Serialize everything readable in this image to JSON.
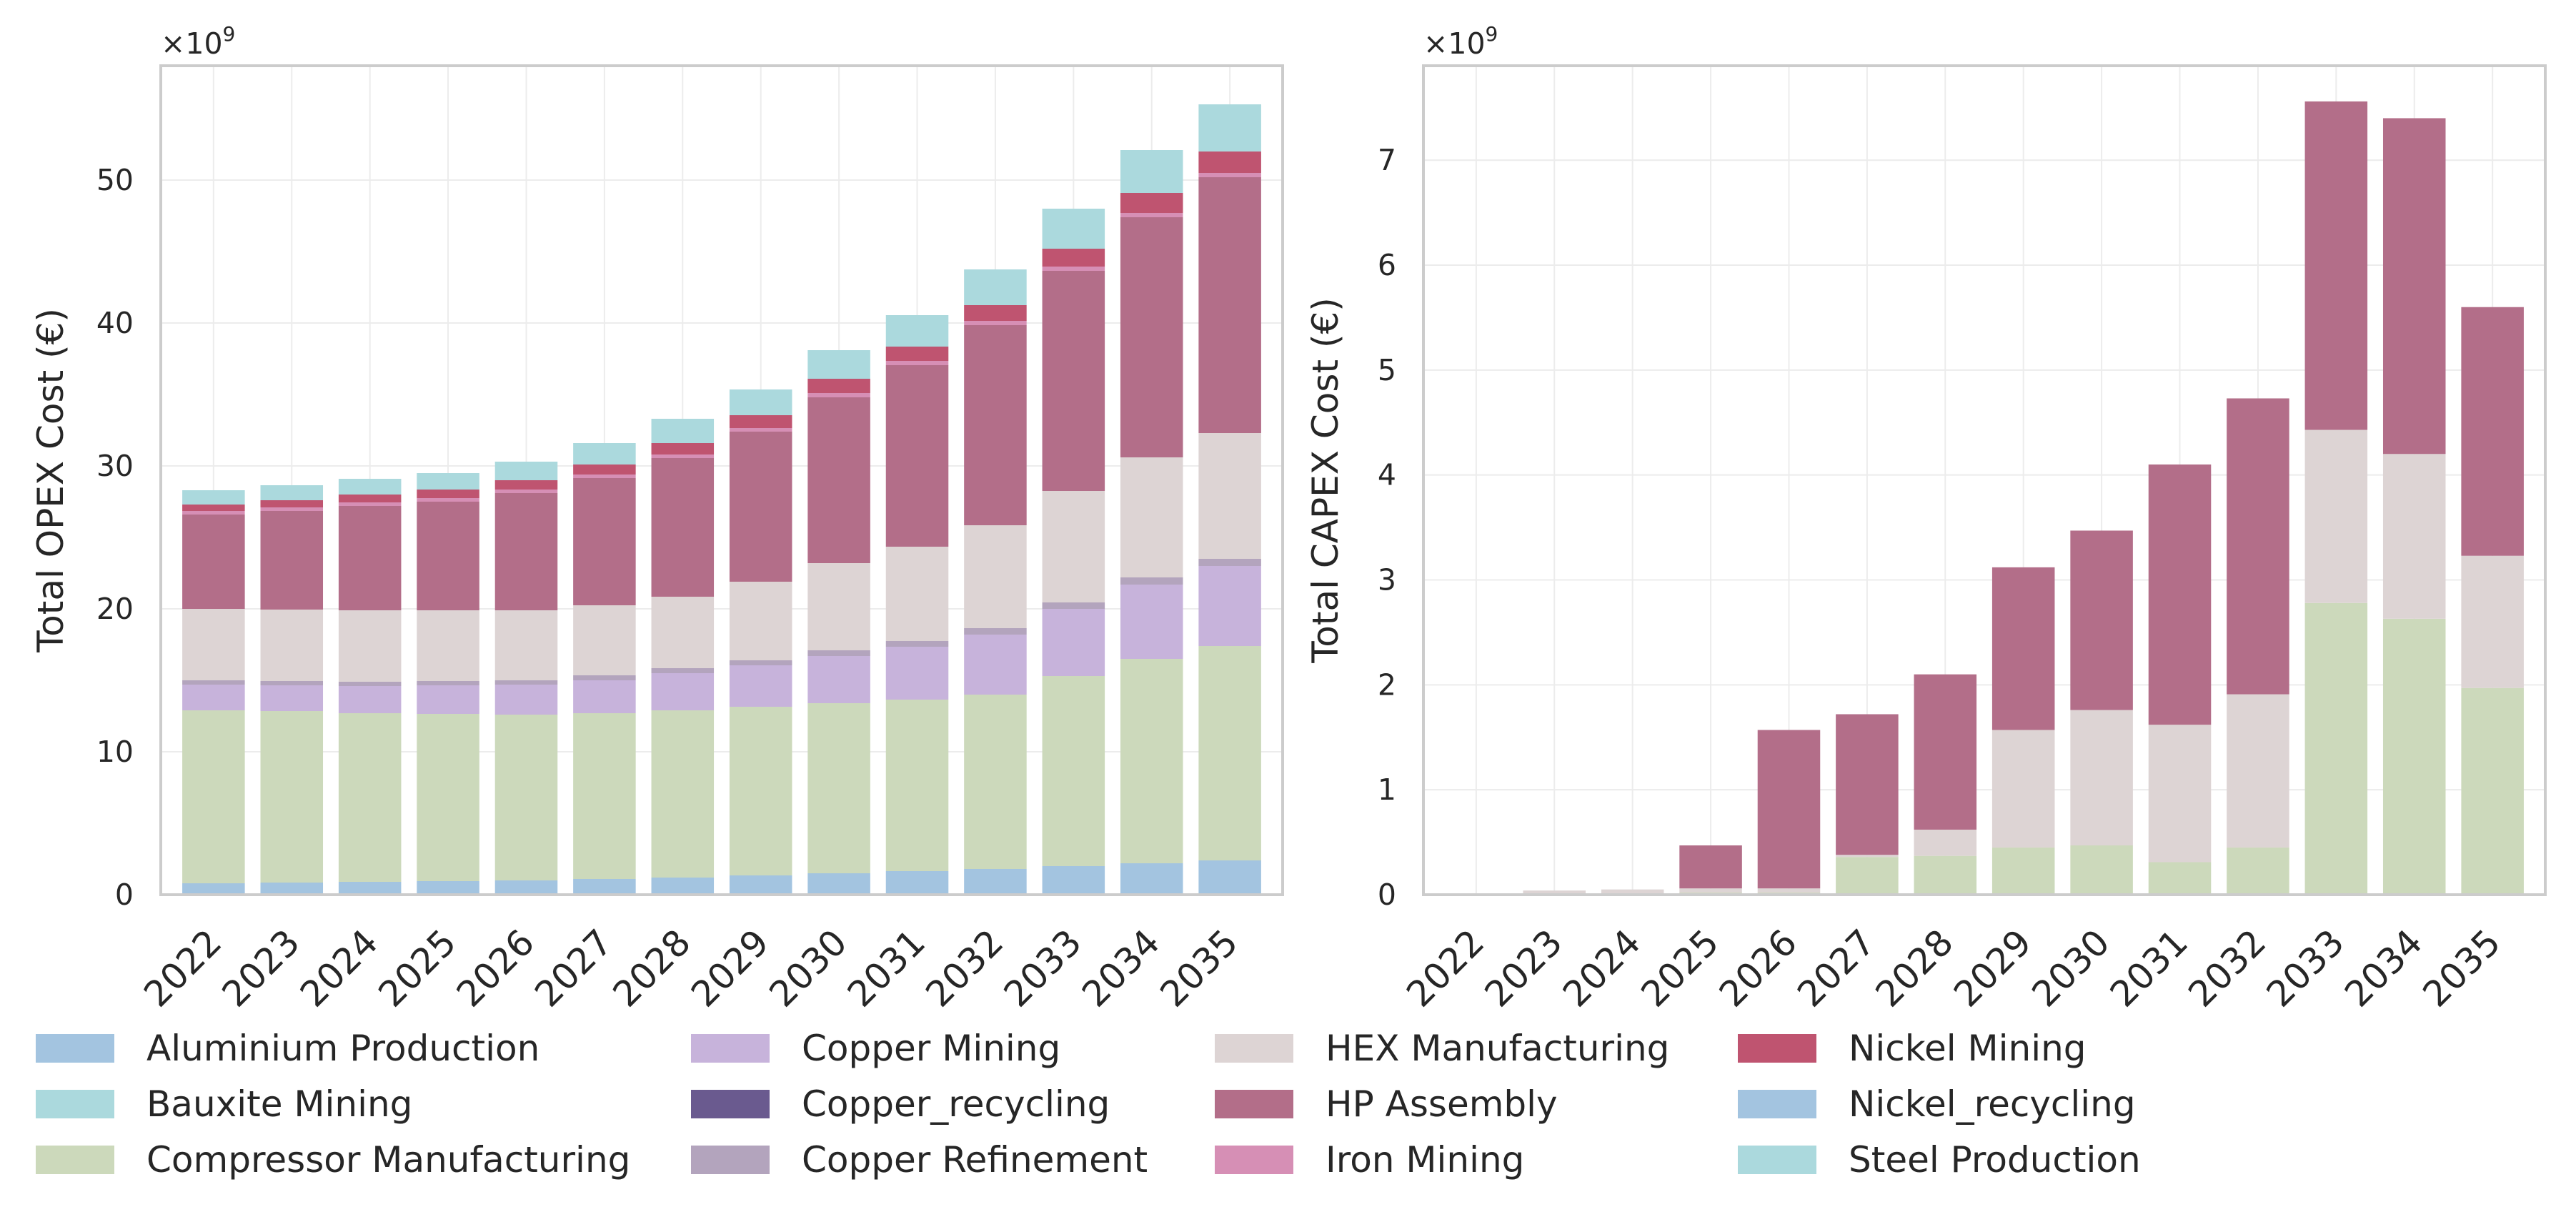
{
  "chart_data": [
    {
      "type": "bar",
      "stacked": true,
      "title": "",
      "xlabel": "",
      "ylabel": "Total OPEX Cost (€)",
      "offset_text": "×10",
      "offset_exp": "9",
      "ylim": [
        0,
        58
      ],
      "yticks": [
        0,
        10,
        20,
        30,
        40,
        50
      ],
      "grid": true,
      "categories": [
        "2022",
        "2023",
        "2024",
        "2025",
        "2026",
        "2027",
        "2028",
        "2029",
        "2030",
        "2031",
        "2032",
        "2033",
        "2034",
        "2035"
      ],
      "series": [
        {
          "name": "Aluminium Production",
          "values": [
            0.8,
            0.85,
            0.9,
            0.95,
            1.0,
            1.1,
            1.2,
            1.35,
            1.5,
            1.65,
            1.8,
            2.0,
            2.2,
            2.4
          ]
        },
        {
          "name": "Compressor Manufacturing",
          "values": [
            12.1,
            12.0,
            11.8,
            11.7,
            11.6,
            11.6,
            11.7,
            11.8,
            11.9,
            12.0,
            12.2,
            13.3,
            14.3,
            15.0
          ]
        },
        {
          "name": "Copper Mining",
          "values": [
            1.8,
            1.8,
            1.9,
            2.0,
            2.1,
            2.3,
            2.6,
            2.9,
            3.3,
            3.7,
            4.2,
            4.7,
            5.2,
            5.6
          ]
        },
        {
          "name": "Copper Refinement",
          "values": [
            0.3,
            0.3,
            0.3,
            0.3,
            0.3,
            0.35,
            0.35,
            0.35,
            0.4,
            0.4,
            0.45,
            0.45,
            0.5,
            0.5
          ]
        },
        {
          "name": "HEX Manufacturing",
          "values": [
            5.0,
            5.0,
            5.0,
            4.95,
            4.9,
            4.9,
            5.0,
            5.5,
            6.1,
            6.6,
            7.2,
            7.8,
            8.4,
            8.8
          ]
        },
        {
          "name": "HP Assembly",
          "values": [
            6.6,
            6.9,
            7.3,
            7.6,
            8.2,
            8.9,
            9.7,
            10.5,
            11.6,
            12.7,
            14.0,
            15.4,
            16.8,
            17.9
          ]
        },
        {
          "name": "Iron Mining",
          "values": [
            0.25,
            0.25,
            0.25,
            0.25,
            0.25,
            0.25,
            0.25,
            0.25,
            0.3,
            0.3,
            0.3,
            0.3,
            0.3,
            0.3
          ]
        },
        {
          "name": "Nickel Mining",
          "values": [
            0.45,
            0.5,
            0.55,
            0.6,
            0.65,
            0.7,
            0.8,
            0.9,
            1.0,
            1.0,
            1.1,
            1.25,
            1.4,
            1.5
          ]
        },
        {
          "name": "Steel Production",
          "values": [
            1.0,
            1.05,
            1.1,
            1.15,
            1.3,
            1.5,
            1.7,
            1.8,
            2.0,
            2.2,
            2.5,
            2.8,
            3.0,
            3.3
          ]
        }
      ]
    },
    {
      "type": "bar",
      "stacked": true,
      "title": "",
      "xlabel": "",
      "ylabel": "Total CAPEX Cost (€)",
      "offset_text": "×10",
      "offset_exp": "9",
      "ylim": [
        0,
        7.9
      ],
      "yticks": [
        0,
        1,
        2,
        3,
        4,
        5,
        6,
        7
      ],
      "grid": true,
      "categories": [
        "2022",
        "2023",
        "2024",
        "2025",
        "2026",
        "2027",
        "2028",
        "2029",
        "2030",
        "2031",
        "2032",
        "2033",
        "2034",
        "2035"
      ],
      "series": [
        {
          "name": "Compressor Manufacturing",
          "values": [
            0.0,
            0.0,
            0.0,
            0.02,
            0.02,
            0.36,
            0.37,
            0.45,
            0.47,
            0.31,
            0.45,
            2.78,
            2.63,
            1.97
          ]
        },
        {
          "name": "HEX Manufacturing",
          "values": [
            0.01,
            0.04,
            0.05,
            0.04,
            0.04,
            0.02,
            0.25,
            1.12,
            1.29,
            1.31,
            1.46,
            1.65,
            1.57,
            1.26
          ]
        },
        {
          "name": "HP Assembly",
          "values": [
            0.0,
            0.0,
            0.0,
            0.41,
            1.51,
            1.34,
            1.48,
            1.55,
            1.71,
            2.48,
            2.82,
            3.13,
            3.2,
            2.37
          ]
        }
      ]
    }
  ],
  "legend": {
    "placement": "bottom",
    "entries": [
      {
        "label": "Aluminium Production",
        "color": "#a3c4e0"
      },
      {
        "label": "Bauxite Mining",
        "color": "#abd9dd"
      },
      {
        "label": "Compressor Manufacturing",
        "color": "#ccd9bb"
      },
      {
        "label": "Copper Mining",
        "color": "#c7b3db"
      },
      {
        "label": "Copper_recycling",
        "color": "#6a5a8f"
      },
      {
        "label": "Copper Refinement",
        "color": "#b3a4bd"
      },
      {
        "label": "HEX Manufacturing",
        "color": "#ddd4d4"
      },
      {
        "label": "HP Assembly",
        "color": "#b36e89"
      },
      {
        "label": "Iron Mining",
        "color": "#d68fb5"
      },
      {
        "label": "Nickel Mining",
        "color": "#bf5470"
      },
      {
        "label": "Nickel_recycling",
        "color": "#a3c4e0"
      },
      {
        "label": "Steel Production",
        "color": "#abd9dd"
      }
    ]
  }
}
